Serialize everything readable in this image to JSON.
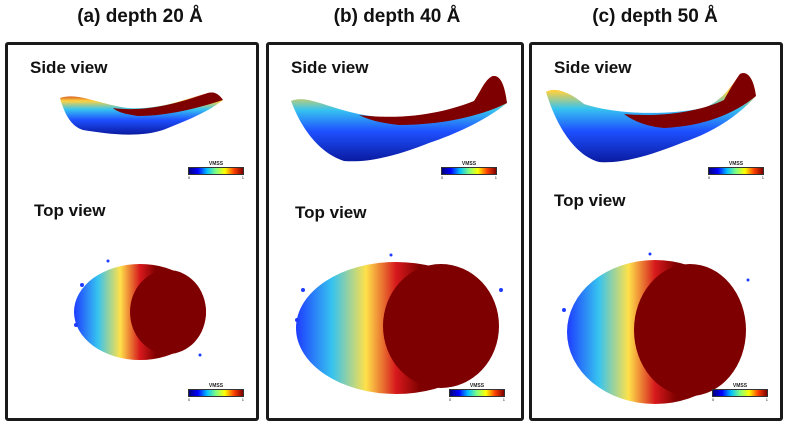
{
  "panels": [
    {
      "title": "(a) depth 20 Å",
      "side_label": "Side view",
      "top_label": "Top view",
      "colorbar": {
        "title": "VMSS",
        "min": "0",
        "max": "1"
      }
    },
    {
      "title": "(b) depth 40 Å",
      "side_label": "Side view",
      "top_label": "Top view",
      "colorbar": {
        "title": "VMSS",
        "min": "0",
        "max": "1"
      }
    },
    {
      "title": "(c) depth 50 Å",
      "side_label": "Side view",
      "top_label": "Top view",
      "colorbar": {
        "title": "VMSS",
        "min": "0",
        "max": "1"
      }
    }
  ],
  "colors": {
    "dark_red": "#7f0000",
    "red": "#d7191c",
    "orange": "#fdae61",
    "yellow": "#ffff40",
    "cyan": "#36c3f0",
    "blue": "#1e3cff",
    "navy": "#0a1a8c",
    "frame": "#1a1a1a"
  }
}
